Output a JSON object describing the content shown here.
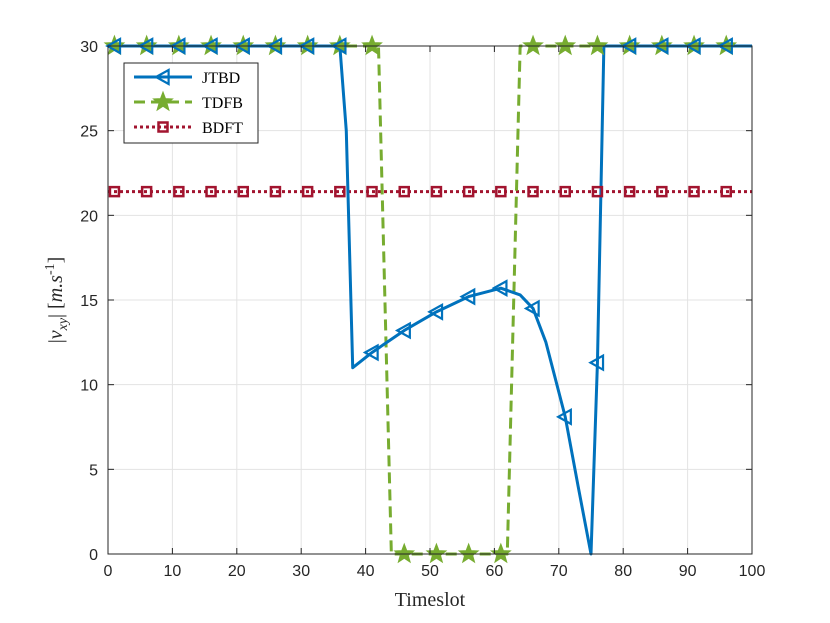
{
  "chart_data": {
    "type": "line",
    "xlabel": "Timeslot",
    "ylabel": "|v_xy| [m.s^-1]",
    "xlim": [
      0,
      100
    ],
    "ylim": [
      0,
      30
    ],
    "xticks": [
      0,
      10,
      20,
      30,
      40,
      50,
      60,
      70,
      80,
      90,
      100
    ],
    "yticks": [
      0,
      5,
      10,
      15,
      20,
      25,
      30
    ],
    "grid": true,
    "legend_position": "top-left",
    "series": [
      {
        "name": "JTBD",
        "color": "#0072BD",
        "line_style": "solid",
        "marker": "triangle-left",
        "x": [
          0,
          36,
          37,
          38,
          41,
          46,
          51,
          56,
          61,
          64,
          66,
          68,
          71,
          73,
          75,
          76,
          77,
          78,
          100
        ],
        "y": [
          30,
          30,
          25,
          11,
          11.9,
          13.2,
          14.3,
          15.2,
          15.7,
          15.3,
          14.5,
          12.5,
          8.1,
          4.0,
          0,
          11.3,
          30,
          30,
          30
        ],
        "marker_x": [
          1,
          6,
          11,
          16,
          21,
          26,
          31,
          36,
          41,
          46,
          51,
          56,
          61,
          66,
          71,
          76,
          81,
          86,
          91,
          96
        ],
        "marker_y": [
          30,
          30,
          30,
          30,
          30,
          30,
          30,
          30,
          11.9,
          13.2,
          14.3,
          15.2,
          15.7,
          14.5,
          8.1,
          11.3,
          30,
          30,
          30,
          30
        ]
      },
      {
        "name": "TDFB",
        "color": "#77AC30",
        "line_style": "dashed",
        "marker": "star",
        "x": [
          0,
          42,
          44,
          62,
          64,
          100
        ],
        "y": [
          30,
          30,
          0,
          0,
          30,
          30
        ],
        "marker_x": [
          1,
          6,
          11,
          16,
          21,
          26,
          31,
          36,
          41,
          46,
          51,
          56,
          61,
          66,
          71,
          76,
          81,
          86,
          91,
          96
        ],
        "marker_y": [
          30,
          30,
          30,
          30,
          30,
          30,
          30,
          30,
          30,
          0,
          0,
          0,
          0,
          30,
          30,
          30,
          30,
          30,
          30,
          30
        ]
      },
      {
        "name": "BDFT",
        "color": "#A2142F",
        "line_style": "dotted",
        "marker": "square",
        "x": [
          0,
          100
        ],
        "y": [
          21.4,
          21.4
        ],
        "marker_x": [
          1,
          6,
          11,
          16,
          21,
          26,
          31,
          36,
          41,
          46,
          51,
          56,
          61,
          66,
          71,
          76,
          81,
          86,
          91,
          96
        ],
        "marker_y": [
          21.4,
          21.4,
          21.4,
          21.4,
          21.4,
          21.4,
          21.4,
          21.4,
          21.4,
          21.4,
          21.4,
          21.4,
          21.4,
          21.4,
          21.4,
          21.4,
          21.4,
          21.4,
          21.4,
          21.4
        ]
      }
    ]
  }
}
